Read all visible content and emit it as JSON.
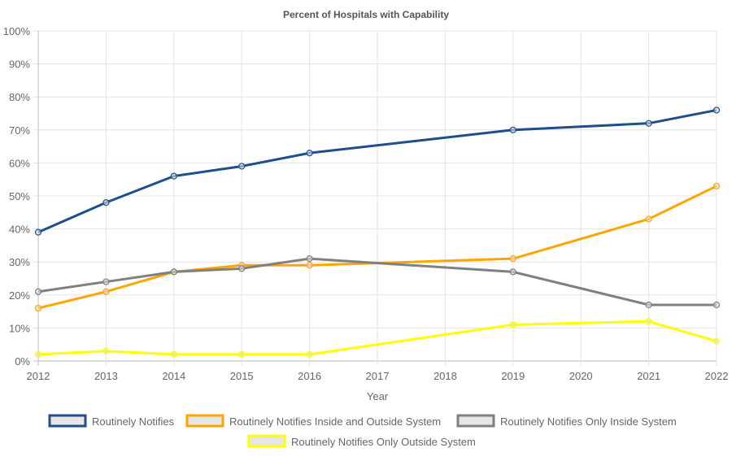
{
  "chart_data": {
    "type": "line",
    "title": "Percent of Hospitals with Capability",
    "xlabel": "Year",
    "ylabel": "",
    "x": [
      2012,
      2013,
      2014,
      2015,
      2016,
      2017,
      2018,
      2019,
      2020,
      2021,
      2022
    ],
    "ylim": [
      0,
      100
    ],
    "yticks": [
      "0%",
      "10%",
      "20%",
      "30%",
      "40%",
      "50%",
      "60%",
      "70%",
      "80%",
      "90%",
      "100%"
    ],
    "grid": true,
    "legend_position": "bottom",
    "series": [
      {
        "name": "Routinely Notifies",
        "color": "#1f4e8c",
        "values": [
          39,
          48,
          56,
          59,
          63,
          null,
          null,
          70,
          null,
          72,
          76
        ]
      },
      {
        "name": "Routinely Notifies Inside and Outside System",
        "color": "#ffa500",
        "values": [
          16,
          21,
          27,
          29,
          29,
          null,
          null,
          31,
          null,
          43,
          53
        ]
      },
      {
        "name": "Routinely Notifies Only Inside System",
        "color": "#808080",
        "values": [
          21,
          24,
          27,
          28,
          31,
          null,
          null,
          27,
          null,
          17,
          17
        ]
      },
      {
        "name": "Routinely Notifies Only Outside System",
        "color": "#ffff00",
        "values": [
          2,
          3,
          2,
          2,
          2,
          null,
          null,
          11,
          null,
          12,
          6
        ]
      }
    ]
  }
}
